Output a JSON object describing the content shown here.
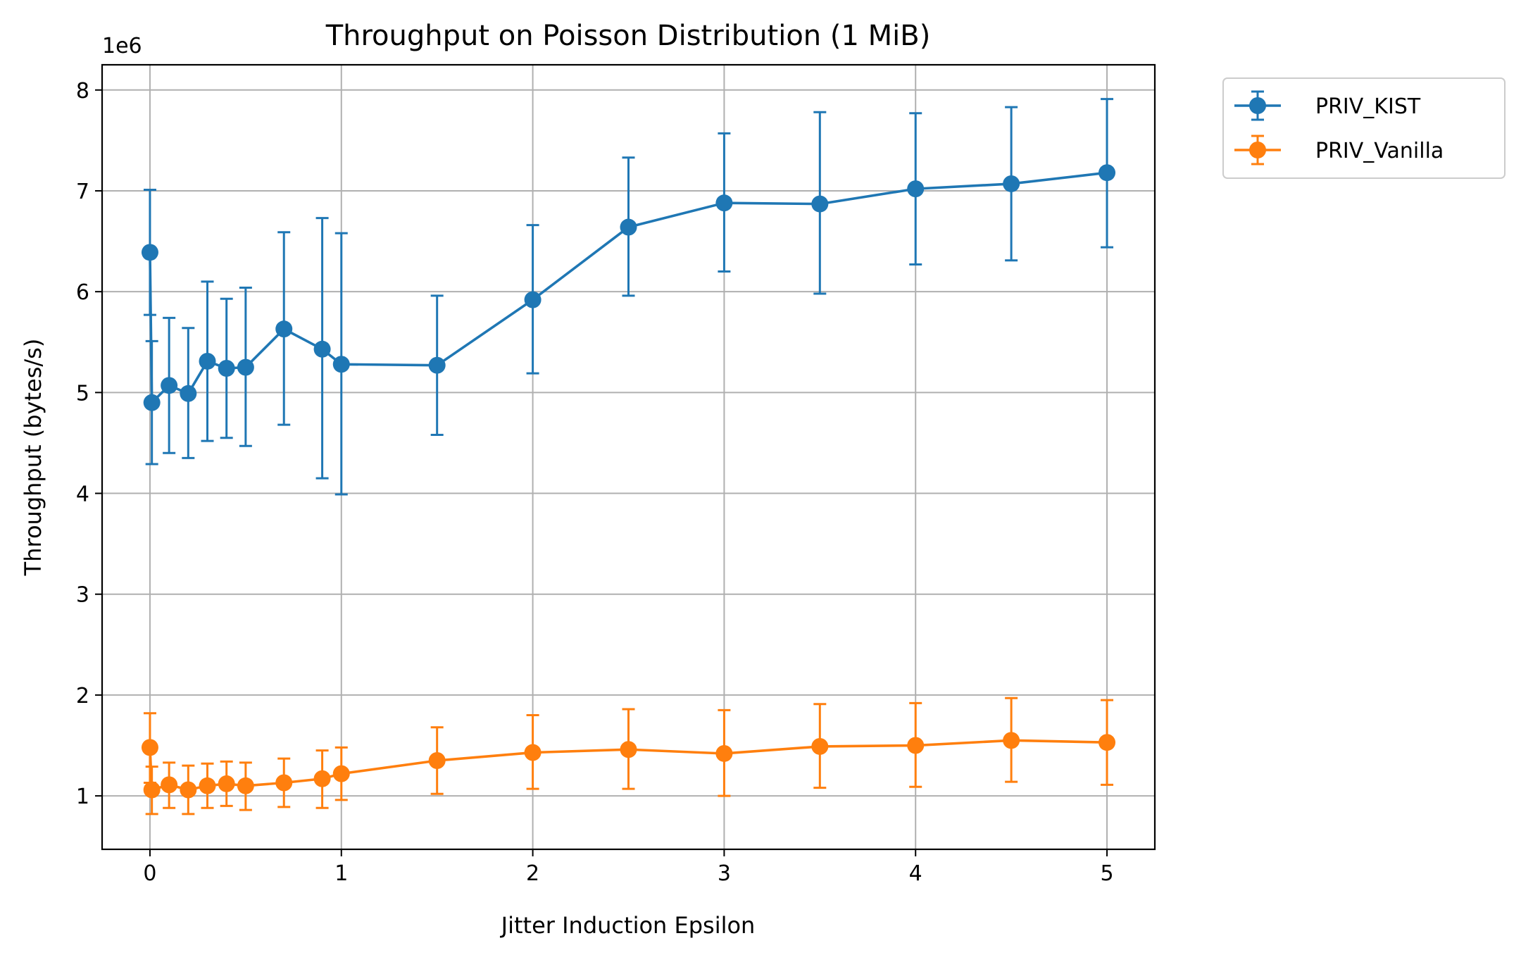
{
  "chart_data": {
    "type": "line",
    "title": "Throughput on Poisson Distribution (1 MiB)",
    "xlabel": "Jitter Induction Epsilon",
    "ylabel": "Throughput (bytes/s)",
    "y_offset_text": "1e6",
    "xlim": [
      -0.25,
      5.25
    ],
    "ylim": [
      470000,
      8250000
    ],
    "x_ticks": [
      0,
      1,
      2,
      3,
      4,
      5
    ],
    "x_tick_labels": [
      "0",
      "1",
      "2",
      "3",
      "4",
      "5"
    ],
    "y_ticks": [
      1000000,
      2000000,
      3000000,
      4000000,
      5000000,
      6000000,
      7000000,
      8000000
    ],
    "y_tick_labels": [
      "1",
      "2",
      "3",
      "4",
      "5",
      "6",
      "7",
      "8"
    ],
    "grid": true,
    "legend_position": "outside-top-right",
    "x": [
      0,
      0.01,
      0.1,
      0.2,
      0.3,
      0.4,
      0.5,
      0.7,
      0.9,
      1.0,
      1.5,
      2.0,
      2.5,
      3.0,
      3.5,
      4.0,
      4.5,
      5.0
    ],
    "series": [
      {
        "name": "PRIV_KIST",
        "color": "#1f77b4",
        "values": [
          6390000,
          4900000,
          5070000,
          4990000,
          5310000,
          5240000,
          5250000,
          5630000,
          5430000,
          5280000,
          5270000,
          5920000,
          6640000,
          6880000,
          6870000,
          7020000,
          7070000,
          7180000
        ],
        "err_low": [
          5770000,
          4290000,
          4400000,
          4350000,
          4520000,
          4550000,
          4470000,
          4680000,
          4150000,
          3990000,
          4580000,
          5190000,
          5960000,
          6200000,
          5980000,
          6270000,
          6310000,
          6440000
        ],
        "err_high": [
          7010000,
          5510000,
          5740000,
          5640000,
          6100000,
          5930000,
          6040000,
          6590000,
          6730000,
          6580000,
          5960000,
          6660000,
          7330000,
          7570000,
          7780000,
          7770000,
          7830000,
          7910000
        ]
      },
      {
        "name": "PRIV_Vanilla",
        "color": "#ff7f0e",
        "values": [
          1480000,
          1060000,
          1110000,
          1060000,
          1100000,
          1120000,
          1100000,
          1130000,
          1170000,
          1220000,
          1350000,
          1430000,
          1460000,
          1420000,
          1490000,
          1500000,
          1550000,
          1530000
        ],
        "err_low": [
          1130000,
          820000,
          880000,
          820000,
          880000,
          900000,
          860000,
          890000,
          880000,
          960000,
          1020000,
          1070000,
          1070000,
          1000000,
          1080000,
          1090000,
          1140000,
          1110000
        ],
        "err_high": [
          1820000,
          1290000,
          1330000,
          1300000,
          1320000,
          1340000,
          1330000,
          1370000,
          1450000,
          1480000,
          1680000,
          1800000,
          1860000,
          1850000,
          1910000,
          1920000,
          1970000,
          1950000
        ]
      }
    ]
  }
}
